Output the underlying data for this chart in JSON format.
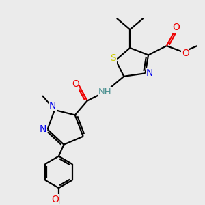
{
  "bg_color": "#ebebeb",
  "atom_colors": {
    "C": "#000000",
    "H": "#4a9090",
    "N": "#0000ee",
    "O": "#ee0000",
    "S": "#cccc00"
  },
  "bond_color": "#000000",
  "bond_width": 1.6,
  "figsize": [
    3.0,
    3.0
  ],
  "dpi": 100,
  "xlim": [
    0,
    10
  ],
  "ylim": [
    0,
    10
  ]
}
